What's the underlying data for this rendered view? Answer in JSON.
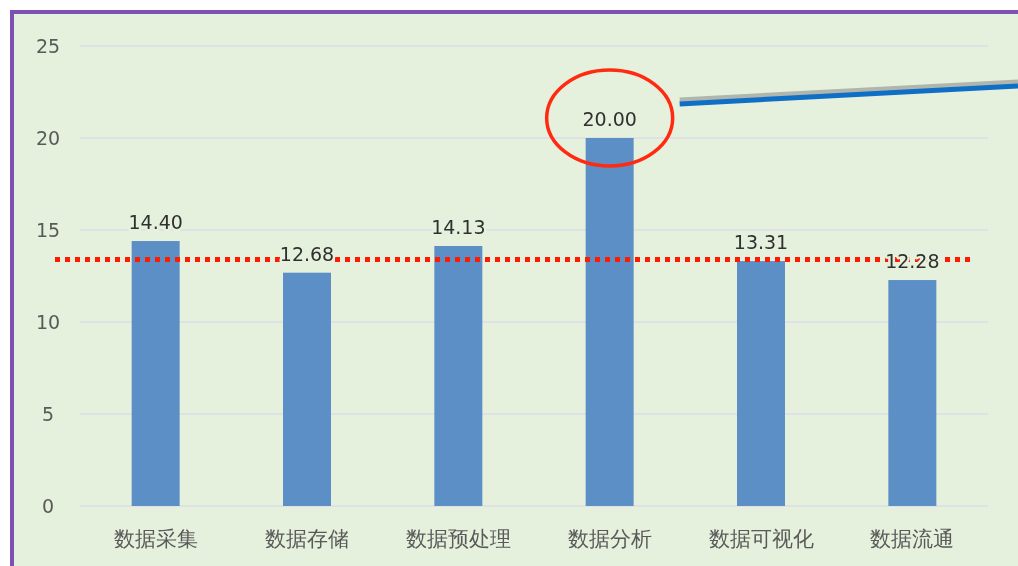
{
  "chart_data": {
    "type": "bar",
    "categories": [
      "数据采集",
      "数据存储",
      "数据预处理",
      "数据分析",
      "数据可视化",
      "数据流通"
    ],
    "values": [
      14.4,
      12.68,
      14.13,
      20.0,
      13.31,
      12.28
    ],
    "value_labels": [
      "14.40",
      "12.68",
      "14.13",
      "20.00",
      "13.31",
      "12.28"
    ],
    "color": "#5b8fc5",
    "ylim": [
      0,
      25
    ],
    "yticks": [
      0,
      5,
      10,
      15,
      20,
      25
    ],
    "grid": "y",
    "ref_lines": [
      {
        "axis": "y",
        "value": 13.4,
        "color": "#ff1a00",
        "line_style": "dotted"
      }
    ]
  }
}
